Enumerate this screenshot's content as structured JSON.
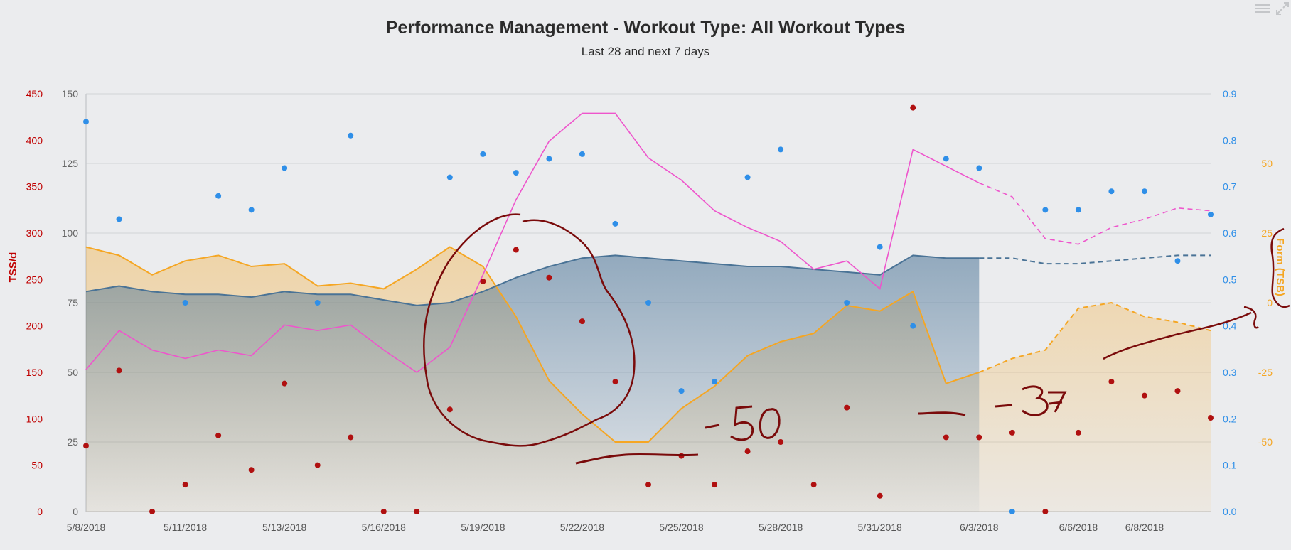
{
  "chart_data": {
    "type": "line",
    "title": "Performance Management - Workout Type: All Workout Types",
    "subtitle": "Last 28 and next 7 days",
    "x_tick_labels": [
      "5/8/2018",
      "5/11/2018",
      "5/13/2018",
      "5/16/2018",
      "5/19/2018",
      "5/22/2018",
      "5/25/2018",
      "5/28/2018",
      "5/31/2018",
      "6/3/2018",
      "6/6/2018",
      "6/8/2018"
    ],
    "x_tick_index": [
      0,
      3,
      6,
      9,
      12,
      15,
      18,
      21,
      24,
      27,
      30,
      32
    ],
    "x_count": 35,
    "projection_start_index": 27,
    "axes": {
      "tss_per_day": {
        "label": "TSS/d",
        "color": "#c00000",
        "min": 0,
        "max": 450,
        "ticks": [
          "0",
          "50",
          "100",
          "150",
          "200",
          "250",
          "300",
          "350",
          "400",
          "450"
        ]
      },
      "fitness_fatigue": {
        "label": "",
        "color": "#666666",
        "min": 0,
        "max": 150,
        "ticks": [
          "0",
          "25",
          "50",
          "75",
          "100",
          "125",
          "150"
        ]
      },
      "intensity_factor": {
        "label": "",
        "color": "#2f8fe8",
        "min": 0,
        "max": 0.9,
        "ticks": [
          "0.0",
          "0.1",
          "0.2",
          "0.3",
          "0.4",
          "0.5",
          "0.6",
          "0.7",
          "0.8",
          "0.9"
        ]
      },
      "form": {
        "label": "Form (TSB)",
        "color": "#f5a623",
        "min": -75,
        "max": 75,
        "ticks": [
          "-50",
          "-25",
          "0",
          "25",
          "50"
        ]
      }
    },
    "series": [
      {
        "type": "area",
        "axis": "form",
        "color": "#f5a623",
        "values": [
          20,
          17,
          10,
          15,
          17,
          13,
          14,
          6,
          7,
          5,
          12,
          20,
          13,
          -5,
          -28,
          -40,
          -50,
          -50,
          -38,
          -30,
          -19,
          -14,
          -11,
          -1,
          -3,
          4,
          -29,
          -25,
          -20,
          -17,
          -2,
          0,
          -5,
          -7,
          -10
        ]
      },
      {
        "type": "area",
        "axis": "fitness_fatigue",
        "color": "#4a7396",
        "values": [
          79,
          81,
          79,
          78,
          78,
          77,
          79,
          78,
          78,
          76,
          74,
          75,
          79,
          84,
          88,
          91,
          92,
          91,
          90,
          89,
          88,
          88,
          87,
          86,
          85,
          92,
          91,
          91,
          91,
          89,
          89,
          90,
          91,
          92,
          92
        ]
      },
      {
        "type": "line",
        "axis": "fitness_fatigue",
        "color": "#ee55cc",
        "values": [
          51,
          65,
          58,
          55,
          58,
          56,
          67,
          65,
          67,
          58,
          50,
          59,
          85,
          112,
          133,
          143,
          143,
          127,
          119,
          108,
          102,
          97,
          87,
          90,
          80,
          130,
          124,
          118,
          113,
          98,
          96,
          102,
          105,
          109,
          108
        ]
      },
      {
        "type": "scatter",
        "axis": "intensity_factor",
        "color": "#2f8fe8",
        "values": [
          0.84,
          0.63,
          null,
          0.45,
          0.68,
          0.65,
          0.74,
          0.45,
          0.81,
          null,
          null,
          0.72,
          0.77,
          0.73,
          0.76,
          0.77,
          0.62,
          0.45,
          0.26,
          0.28,
          0.72,
          0.78,
          null,
          0.45,
          0.57,
          0.4,
          0.76,
          0.74,
          0.0,
          0.65,
          0.65,
          0.69,
          0.69,
          0.54,
          0.64
        ]
      },
      {
        "type": "scatter",
        "axis": "tss_per_day",
        "color": "#b01010",
        "values": [
          71,
          152,
          0,
          29,
          82,
          45,
          138,
          50,
          80,
          0,
          0,
          110,
          248,
          282,
          252,
          205,
          140,
          29,
          60,
          29,
          65,
          75,
          29,
          112,
          17,
          435,
          80,
          80,
          85,
          0,
          85,
          140,
          125,
          130,
          101
        ]
      }
    ],
    "legend": "none"
  },
  "annotations": [
    "-50",
    "-37"
  ]
}
